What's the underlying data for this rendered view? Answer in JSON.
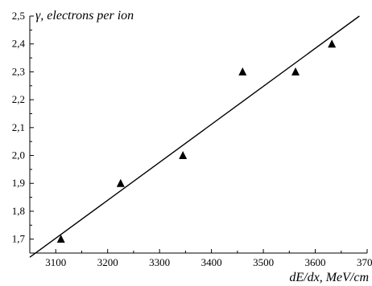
{
  "chart_data": {
    "type": "scatter",
    "title": "",
    "xlabel": "dE/dx, MeV/cm",
    "ylabel": "γ, electrons per ion",
    "xlim": [
      3050,
      3700
    ],
    "ylim": [
      1.65,
      2.5
    ],
    "x_ticks": [
      3100,
      3200,
      3300,
      3400,
      3500,
      3600,
      3700
    ],
    "x_tick_labels": [
      "3100",
      "3200",
      "3300",
      "3400",
      "3500",
      "3600",
      "3700"
    ],
    "y_ticks": [
      1.7,
      1.8,
      1.9,
      2.0,
      2.1,
      2.2,
      2.3,
      2.4,
      2.5
    ],
    "y_tick_labels": [
      "1,7",
      "1,8",
      "1,9",
      "2,0",
      "2,1",
      "2,2",
      "2,3",
      "2,4",
      "2,5"
    ],
    "grid": false,
    "legend": "none",
    "series": [
      {
        "marker": "triangle",
        "color": "#000000",
        "x": [
          3110,
          3225,
          3345,
          3460,
          3562,
          3632
        ],
        "y": [
          1.7,
          1.9,
          2.0,
          2.3,
          2.3,
          2.4
        ]
      }
    ],
    "fit_line": {
      "color": "#000000",
      "x": [
        3050,
        3685
      ],
      "y": [
        1.635,
        2.5
      ]
    }
  }
}
